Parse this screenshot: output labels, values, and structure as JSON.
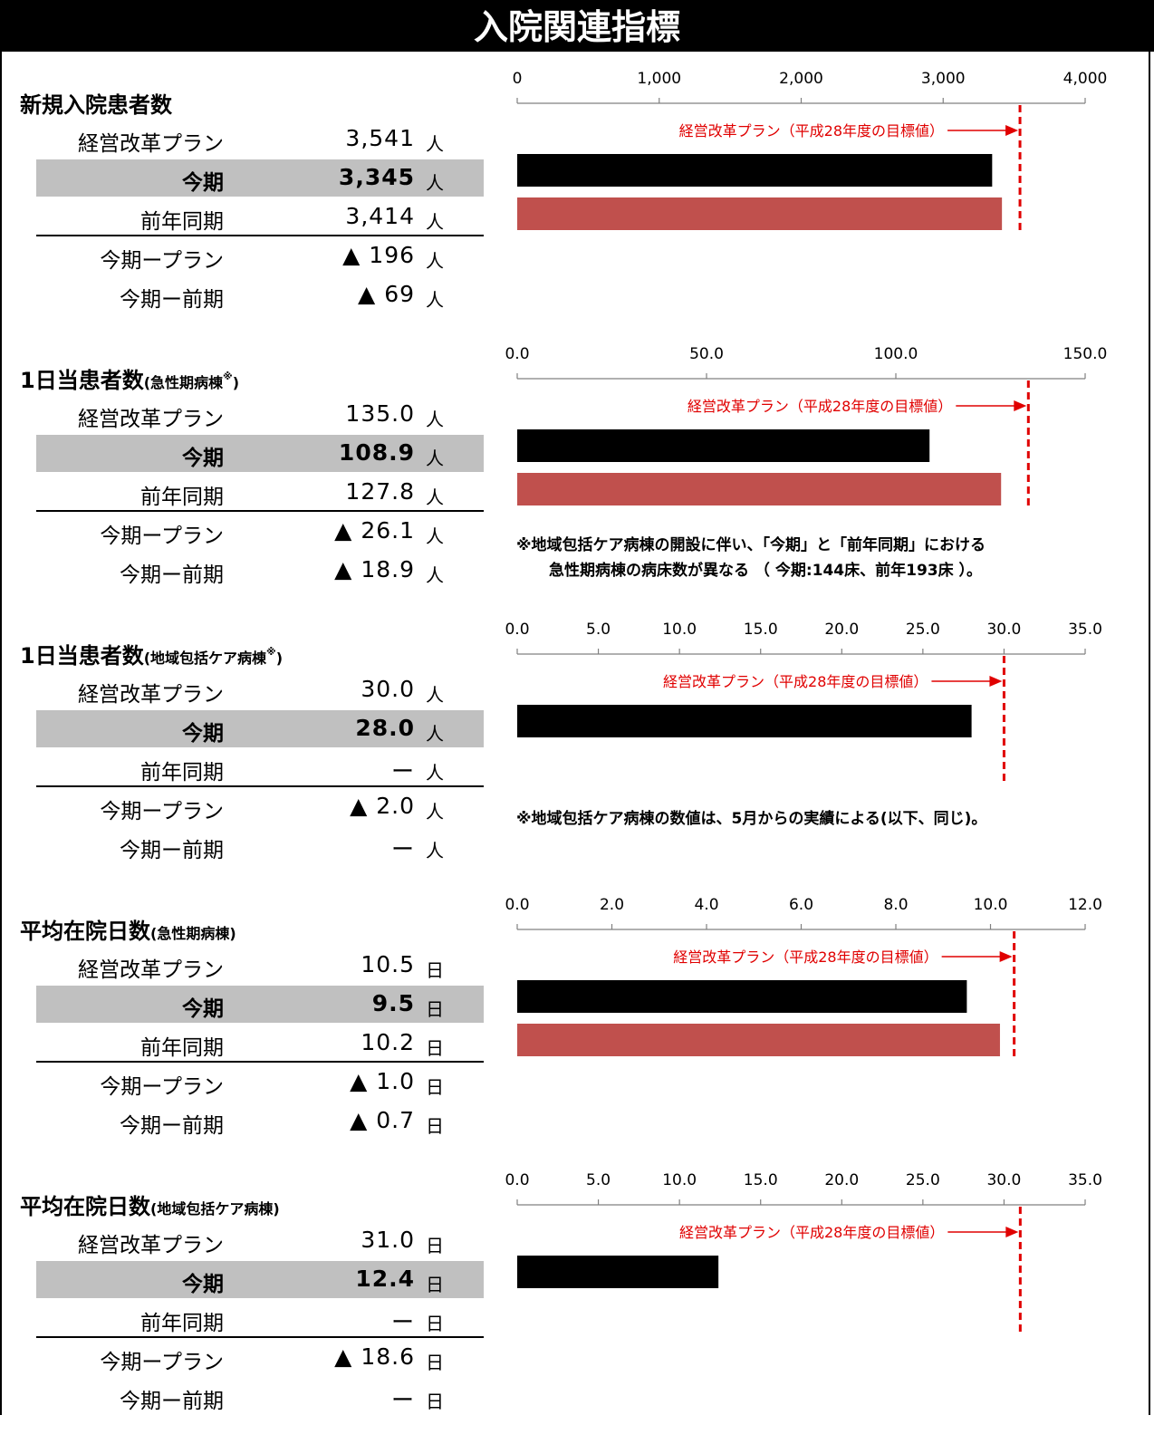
{
  "page_title": "入院関連指標",
  "colors": {
    "current": "#000000",
    "previous": "#c0504d",
    "target": "#e00000",
    "highlight": "#c0c0c0"
  },
  "labels": {
    "plan": "経営改革プラン",
    "current": "今期",
    "previous": "前年同期",
    "diff_plan": "今期ープラン",
    "diff_prev": "今期ー前期",
    "target_annotation": "経営改革プラン（平成28年度の目標値）"
  },
  "sections": [
    {
      "title": "新規入院患者数",
      "subtitle": "",
      "mark": "",
      "unit": "人",
      "plan": "3,541",
      "current": "3,345",
      "previous": "3,414",
      "diff_plan": "▲ 196",
      "diff_prev": "▲ 69",
      "note": []
    },
    {
      "title": "1日当患者数",
      "subtitle": "(急性期病棟",
      "mark": "※",
      "subtitle_end": ")",
      "unit": "人",
      "plan": "135.0",
      "current": "108.9",
      "previous": "127.8",
      "diff_plan": "▲ 26.1",
      "diff_prev": "▲ 18.9",
      "note": [
        "※地域包括ケア病棟の開設に伴い、「今期」と「前年同期」における",
        "急性期病棟の病床数が異なる （ 今期:144床、前年193床 ）。"
      ]
    },
    {
      "title": "1日当患者数",
      "subtitle": "(地域包括ケア病棟",
      "mark": "※",
      "subtitle_end": ")",
      "unit": "人",
      "plan": "30.0",
      "current": "28.0",
      "previous": "ー",
      "diff_plan": "▲ 2.0",
      "diff_prev": "ー",
      "note": [
        "※地域包括ケア病棟の数値は、5月からの実績による(以下、同じ)。"
      ]
    },
    {
      "title": "平均在院日数",
      "subtitle": "(急性期病棟)",
      "mark": "",
      "subtitle_end": "",
      "unit": "日",
      "plan": "10.5",
      "current": "9.5",
      "previous": "10.2",
      "diff_plan": "▲ 1.0",
      "diff_prev": "▲ 0.7",
      "note": []
    },
    {
      "title": "平均在院日数",
      "subtitle": "(地域包括ケア病棟)",
      "mark": "",
      "subtitle_end": "",
      "unit": "日",
      "plan": "31.0",
      "current": "12.4",
      "previous": "ー",
      "diff_plan": "▲ 18.6",
      "diff_prev": "ー",
      "note": []
    }
  ],
  "chart_data": [
    {
      "type": "bar",
      "orientation": "horizontal",
      "ticks": [
        "0",
        "1,000",
        "2,000",
        "3,000",
        "4,000"
      ],
      "xlim": [
        0,
        4000
      ],
      "series": [
        {
          "values": [
            3345
          ],
          "color": "#000000"
        },
        {
          "values": [
            3414
          ],
          "color": "#c0504d"
        }
      ],
      "target_line": 3541,
      "annotation": "経営改革プラン（平成28年度の目標値）"
    },
    {
      "type": "bar",
      "orientation": "horizontal",
      "ticks": [
        "0.0",
        "50.0",
        "100.0",
        "150.0"
      ],
      "xlim": [
        0,
        150
      ],
      "series": [
        {
          "values": [
            108.9
          ],
          "color": "#000000"
        },
        {
          "values": [
            127.8
          ],
          "color": "#c0504d"
        }
      ],
      "target_line": 135.0,
      "annotation": "経営改革プラン（平成28年度の目標値）"
    },
    {
      "type": "bar",
      "orientation": "horizontal",
      "ticks": [
        "0.0",
        "5.0",
        "10.0",
        "15.0",
        "20.0",
        "25.0",
        "30.0",
        "35.0"
      ],
      "xlim": [
        0,
        35
      ],
      "series": [
        {
          "values": [
            28.0
          ],
          "color": "#000000"
        }
      ],
      "target_line": 30.0,
      "annotation": "経営改革プラン（平成28年度の目標値）"
    },
    {
      "type": "bar",
      "orientation": "horizontal",
      "ticks": [
        "0.0",
        "2.0",
        "4.0",
        "6.0",
        "8.0",
        "10.0",
        "12.0"
      ],
      "xlim": [
        0,
        12
      ],
      "series": [
        {
          "values": [
            9.5
          ],
          "color": "#000000"
        },
        {
          "values": [
            10.2
          ],
          "color": "#c0504d"
        }
      ],
      "target_line": 10.5,
      "annotation": "経営改革プラン（平成28年度の目標値）"
    },
    {
      "type": "bar",
      "orientation": "horizontal",
      "ticks": [
        "0.0",
        "5.0",
        "10.0",
        "15.0",
        "20.0",
        "25.0",
        "30.0",
        "35.0"
      ],
      "xlim": [
        0,
        35
      ],
      "series": [
        {
          "values": [
            12.4
          ],
          "color": "#000000"
        }
      ],
      "target_line": 31.0,
      "annotation": "経営改革プラン（平成28年度の目標値）"
    }
  ]
}
